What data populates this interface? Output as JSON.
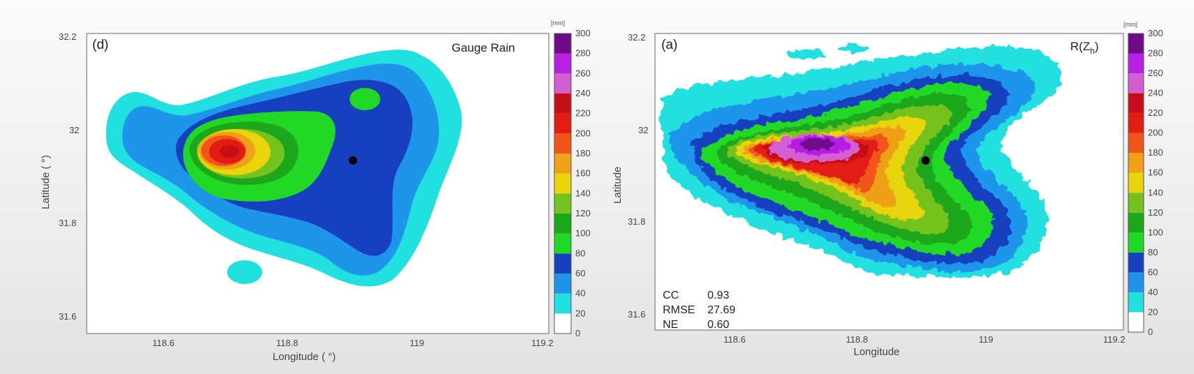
{
  "colors": {
    "levels": [
      "#ffffff",
      "#21e0e0",
      "#1f95ea",
      "#1740c0",
      "#21d925",
      "#1ca71c",
      "#76c21e",
      "#e8d40a",
      "#f0a019",
      "#f0561a",
      "#e21c12",
      "#c50e18",
      "#d35ed2",
      "#b71fe2",
      "#6e0b88"
    ],
    "station_marker": "#000000"
  },
  "chart_data": [
    {
      "type": "heatmap",
      "panel_label": "(d)",
      "title": "Gauge Rain",
      "xlabel": "Longitude (  °)",
      "ylabel": "Latitude (  °)",
      "xlim": [
        118.47,
        119.22
      ],
      "ylim": [
        31.56,
        32.2
      ],
      "xticks": [
        "118.6",
        "118.8",
        "119",
        "119.2"
      ],
      "yticks": [
        "31.6",
        "31.8",
        "32",
        "32.2"
      ],
      "colorbar": {
        "unit": "[mm]",
        "levels": [
          0,
          20,
          40,
          60,
          80,
          100,
          120,
          140,
          160,
          180,
          200,
          220,
          240,
          260,
          280,
          300
        ]
      },
      "station": {
        "lon": 118.9,
        "lat": 31.93
      },
      "max_rain_center": {
        "lon": 118.7,
        "lat": 31.95,
        "value": 225
      }
    },
    {
      "type": "heatmap",
      "panel_label": "(a)",
      "title": "R(Z",
      "title_sub": "h",
      "title_close": ")",
      "xlabel": "Longitude",
      "ylabel": "Latitude",
      "xlim": [
        118.47,
        119.22
      ],
      "ylim": [
        31.56,
        32.2
      ],
      "xticks": [
        "118.6",
        "118.8",
        "119",
        "119.2"
      ],
      "yticks": [
        "31.6",
        "31.8",
        "32",
        "32.2"
      ],
      "colorbar": {
        "unit": "[mm]",
        "levels": [
          0,
          20,
          40,
          60,
          80,
          100,
          120,
          140,
          160,
          180,
          200,
          220,
          240,
          260,
          280,
          300
        ]
      },
      "station": {
        "lon": 118.9,
        "lat": 31.93
      },
      "max_rain_center": {
        "lon": 118.76,
        "lat": 31.95,
        "value": 290
      },
      "stats": [
        {
          "name": "CC",
          "value": "0.93"
        },
        {
          "name": "RMSE",
          "value": "27.69"
        },
        {
          "name": "NE",
          "value": "0.60"
        }
      ]
    }
  ]
}
